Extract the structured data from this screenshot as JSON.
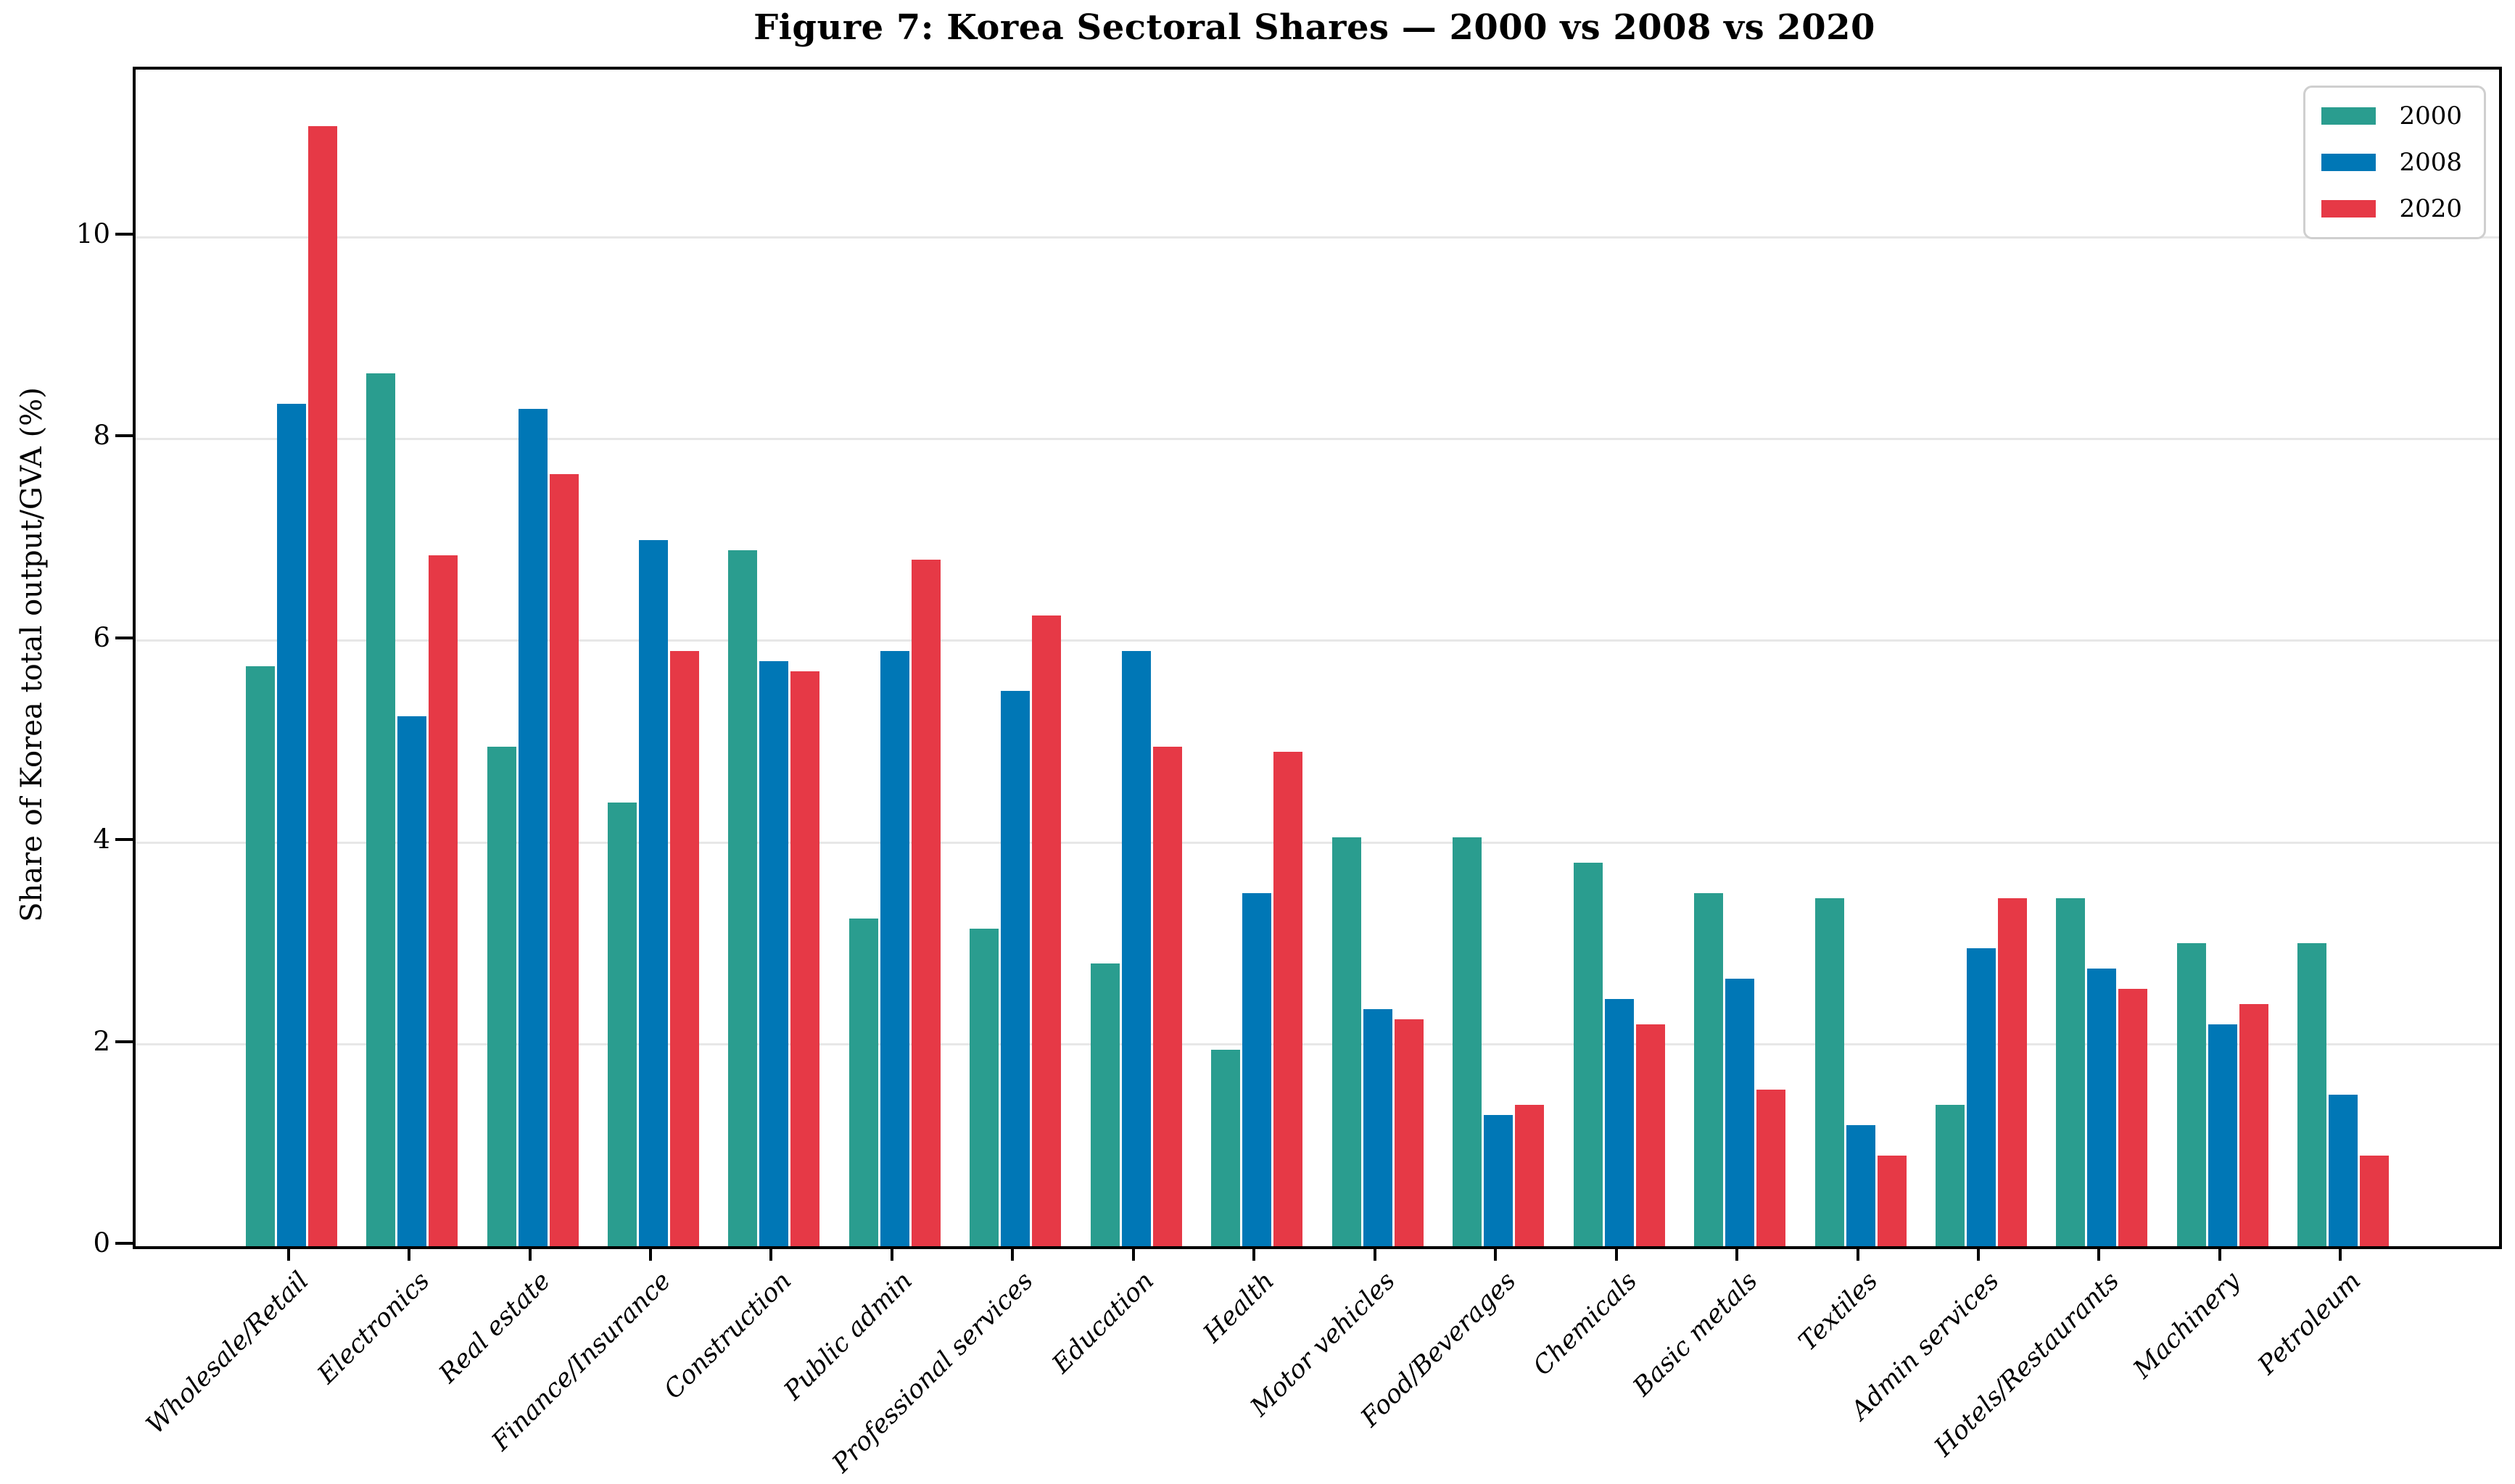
{
  "figure": {
    "title": "Figure 7: Korea Sectoral Shares — 2000 vs 2008 vs 2020"
  },
  "chart_data": {
    "type": "bar",
    "title": "Figure 7: Korea Sectoral Shares — 2000 vs 2008 vs 2020",
    "xlabel": "",
    "ylabel": "Share of Korea total output/GVA (%)",
    "categories": [
      "Wholesale/Retail",
      "Electronics",
      "Real estate",
      "Finance/Insurance",
      "Construction",
      "Public admin",
      "Professional services",
      "Education",
      "Health",
      "Motor vehicles",
      "Food/Beverages",
      "Chemicals",
      "Basic metals",
      "Textiles",
      "Admin services",
      "Hotels/Restaurants",
      "Machinery",
      "Petroleum"
    ],
    "series": [
      {
        "name": "2000",
        "color": "#2a9d8f",
        "values": [
          5.75,
          8.65,
          4.95,
          4.4,
          6.9,
          3.25,
          3.15,
          2.8,
          1.95,
          4.05,
          4.05,
          3.8,
          3.5,
          3.45,
          1.4,
          3.45,
          3.0,
          3.0
        ]
      },
      {
        "name": "2008",
        "color": "#0077b6",
        "values": [
          8.35,
          5.25,
          8.3,
          7.0,
          5.8,
          5.9,
          5.5,
          5.9,
          3.5,
          2.35,
          1.3,
          2.45,
          2.65,
          1.2,
          2.95,
          2.75,
          2.2,
          1.5
        ]
      },
      {
        "name": "2020",
        "color": "#e63946",
        "values": [
          11.1,
          6.85,
          7.65,
          5.9,
          5.7,
          6.8,
          6.25,
          4.95,
          4.9,
          2.25,
          1.4,
          2.2,
          1.55,
          0.9,
          3.45,
          2.55,
          2.4,
          0.9
        ]
      }
    ],
    "yticks": [
      0,
      2,
      4,
      6,
      8,
      10
    ],
    "ylim": [
      0,
      11.66
    ],
    "grid": true,
    "gridline_color": "#e7e7e7",
    "legend_position": "upper right",
    "legend_entries": [
      "2000",
      "2008",
      "2020"
    ]
  }
}
